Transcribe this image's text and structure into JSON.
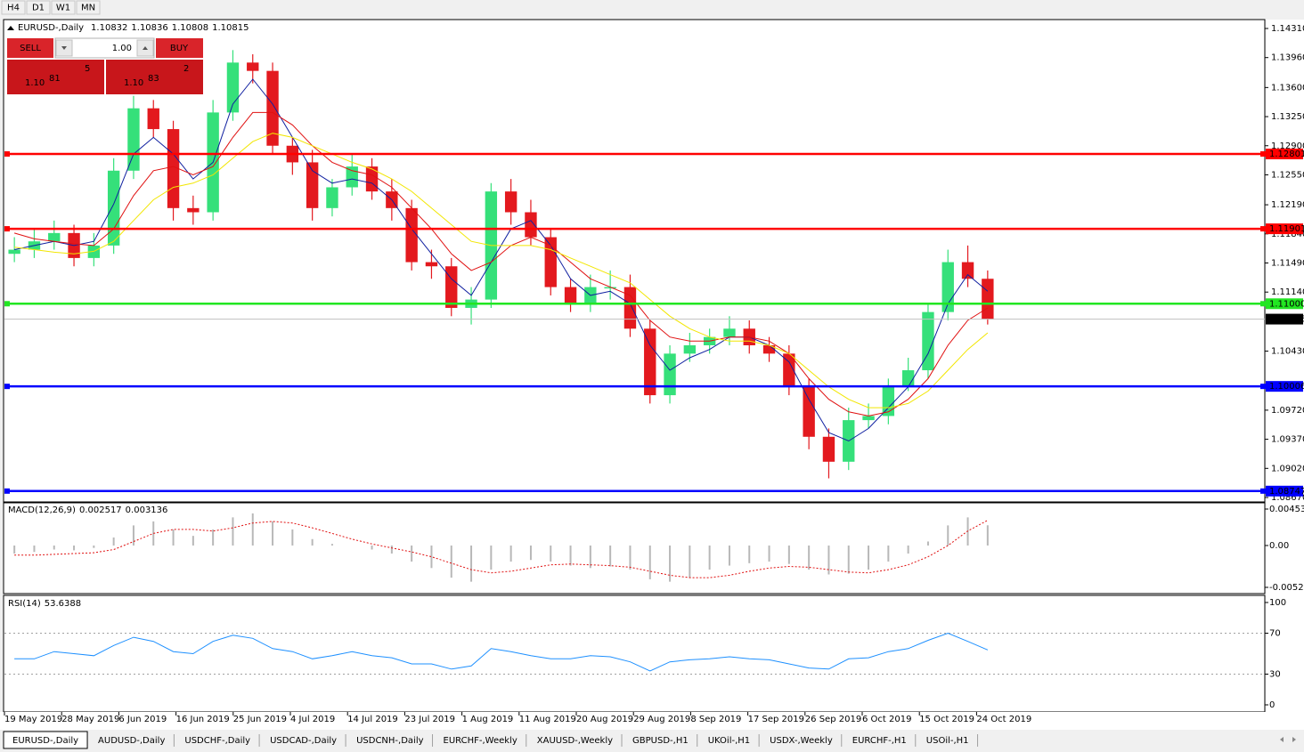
{
  "toolbar": {
    "timeframes": [
      "H4",
      "D1",
      "W1",
      "MN"
    ]
  },
  "header": {
    "symbol": "EURUSD-,Daily",
    "ohlc": [
      1.10832,
      1.10836,
      1.10808,
      1.10815
    ]
  },
  "trade_panel": {
    "sell": "SELL",
    "buy": "BUY",
    "lot": "1.00",
    "sell_price": {
      "prefix": "1.10",
      "big": "81",
      "small": "5"
    },
    "buy_price": {
      "prefix": "1.10",
      "big": "83",
      "small": "2"
    }
  },
  "chart_data": {
    "type": "candlestick",
    "x_labels": [
      "19 May 2019",
      "28 May 2019",
      "6 Jun 2019",
      "16 Jun 2019",
      "25 Jun 2019",
      "4 Jul 2019",
      "14 Jul 2019",
      "23 Jul 2019",
      "1 Aug 2019",
      "11 Aug 2019",
      "20 Aug 2019",
      "29 Aug 2019",
      "8 Sep 2019",
      "17 Sep 2019",
      "26 Sep 2019",
      "6 Oct 2019",
      "15 Oct 2019",
      "24 Oct 2019"
    ],
    "open": [
      1.116,
      1.1165,
      1.1175,
      1.1185,
      1.1155,
      1.117,
      1.126,
      1.1335,
      1.131,
      1.1215,
      1.121,
      1.133,
      1.139,
      1.138,
      1.129,
      1.127,
      1.1215,
      1.124,
      1.1265,
      1.1235,
      1.1215,
      1.115,
      1.1145,
      1.1095,
      1.1105,
      1.1235,
      1.121,
      1.118,
      1.112,
      1.11,
      1.112,
      1.112,
      1.107,
      1.099,
      1.104,
      1.105,
      1.106,
      1.107,
      1.105,
      1.104,
      1.1,
      1.094,
      1.091,
      1.096,
      1.0965,
      1.1,
      1.102,
      1.109,
      1.115,
      1.113
    ],
    "high": [
      1.118,
      1.119,
      1.12,
      1.1195,
      1.1185,
      1.1275,
      1.135,
      1.1345,
      1.132,
      1.123,
      1.1345,
      1.1405,
      1.14,
      1.139,
      1.13,
      1.1285,
      1.125,
      1.128,
      1.1275,
      1.125,
      1.1225,
      1.1165,
      1.1155,
      1.112,
      1.1245,
      1.125,
      1.1225,
      1.119,
      1.113,
      1.1135,
      1.114,
      1.1135,
      1.108,
      1.105,
      1.1065,
      1.107,
      1.1085,
      1.108,
      1.106,
      1.105,
      1.101,
      1.095,
      1.0975,
      1.098,
      1.101,
      1.1035,
      1.11,
      1.1165,
      1.117,
      1.114
    ],
    "low": [
      1.115,
      1.1155,
      1.1165,
      1.1145,
      1.1145,
      1.116,
      1.125,
      1.13,
      1.12,
      1.1195,
      1.12,
      1.132,
      1.1365,
      1.128,
      1.1255,
      1.12,
      1.1205,
      1.123,
      1.1225,
      1.12,
      1.114,
      1.113,
      1.1085,
      1.1075,
      1.1095,
      1.1195,
      1.117,
      1.111,
      1.109,
      1.109,
      1.1105,
      1.106,
      1.098,
      1.098,
      1.103,
      1.104,
      1.105,
      1.104,
      1.103,
      1.099,
      1.0925,
      1.089,
      1.09,
      1.095,
      1.0955,
      1.0995,
      1.101,
      1.108,
      1.112,
      1.1075
    ],
    "close": [
      1.1165,
      1.1175,
      1.1185,
      1.1155,
      1.117,
      1.126,
      1.1335,
      1.131,
      1.1215,
      1.121,
      1.133,
      1.139,
      1.138,
      1.129,
      1.127,
      1.1215,
      1.124,
      1.1265,
      1.1235,
      1.1215,
      1.115,
      1.1145,
      1.1095,
      1.1105,
      1.1235,
      1.121,
      1.118,
      1.112,
      1.11,
      1.112,
      1.112,
      1.107,
      1.099,
      1.104,
      1.105,
      1.106,
      1.107,
      1.105,
      1.104,
      1.1,
      1.094,
      1.091,
      1.096,
      1.0965,
      1.1,
      1.102,
      1.109,
      1.115,
      1.113,
      1.10815
    ],
    "up_color": "#35e07a",
    "down_color": "#e3191e",
    "ma": [
      {
        "color": "#1020a0",
        "values": [
          1.1165,
          1.117,
          1.1175,
          1.117,
          1.1175,
          1.122,
          1.128,
          1.13,
          1.128,
          1.125,
          1.127,
          1.134,
          1.137,
          1.134,
          1.13,
          1.126,
          1.1245,
          1.125,
          1.1245,
          1.1225,
          1.119,
          1.116,
          1.113,
          1.111,
          1.115,
          1.119,
          1.12,
          1.117,
          1.113,
          1.111,
          1.1115,
          1.11,
          1.105,
          1.102,
          1.1035,
          1.1045,
          1.106,
          1.106,
          1.105,
          1.103,
          1.0985,
          1.0945,
          1.0935,
          1.095,
          1.0975,
          1.1,
          1.104,
          1.11,
          1.1135,
          1.1115
        ]
      },
      {
        "color": "#e01010",
        "values": [
          1.1185,
          1.1178,
          1.1175,
          1.1172,
          1.117,
          1.119,
          1.123,
          1.126,
          1.1265,
          1.1255,
          1.1265,
          1.13,
          1.133,
          1.133,
          1.1315,
          1.129,
          1.127,
          1.126,
          1.1255,
          1.124,
          1.1215,
          1.119,
          1.116,
          1.114,
          1.115,
          1.117,
          1.118,
          1.117,
          1.115,
          1.113,
          1.112,
          1.111,
          1.108,
          1.106,
          1.1055,
          1.1055,
          1.106,
          1.106,
          1.1055,
          1.104,
          1.101,
          1.0985,
          1.097,
          1.0965,
          1.097,
          1.0985,
          1.101,
          1.105,
          1.108,
          1.1095
        ]
      },
      {
        "color": "#f2e600",
        "values": [
          1.1168,
          1.1165,
          1.1162,
          1.116,
          1.1163,
          1.1175,
          1.12,
          1.1225,
          1.124,
          1.1245,
          1.1255,
          1.1275,
          1.1295,
          1.1305,
          1.13,
          1.129,
          1.128,
          1.127,
          1.1262,
          1.125,
          1.1235,
          1.1215,
          1.1195,
          1.1175,
          1.117,
          1.117,
          1.117,
          1.1165,
          1.1155,
          1.1145,
          1.1135,
          1.1125,
          1.1105,
          1.1085,
          1.107,
          1.106,
          1.1055,
          1.1055,
          1.105,
          1.104,
          1.102,
          1.1,
          1.0985,
          1.0975,
          1.0975,
          1.098,
          1.0995,
          1.102,
          1.1045,
          1.1065
        ]
      }
    ],
    "ylim": [
      1.0867,
      1.1431
    ],
    "yticks": [
      {
        "value": 1.1431,
        "label": "1.14310"
      },
      {
        "value": 1.1396,
        "label": "1.13960"
      },
      {
        "value": 1.136,
        "label": "1.13600"
      },
      {
        "value": 1.1325,
        "label": "1.13250"
      },
      {
        "value": 1.129,
        "label": "1.12900"
      },
      {
        "value": 1.1255,
        "label": "1.12550"
      },
      {
        "value": 1.1219,
        "label": "1.12190"
      },
      {
        "value": 1.1184,
        "label": "1.11840"
      },
      {
        "value": 1.1149,
        "label": "1.11490"
      },
      {
        "value": 1.1114,
        "label": "1.11140"
      },
      {
        "value": 1.1043,
        "label": "1.10430"
      },
      {
        "value": 1.0972,
        "label": "1.09720"
      },
      {
        "value": 1.0937,
        "label": "1.09370"
      },
      {
        "value": 1.0902,
        "label": "1.09020"
      },
      {
        "value": 1.0867,
        "label": "1.08670"
      }
    ],
    "levels": [
      {
        "value": 1.12801,
        "color": "#ff0000"
      },
      {
        "value": 1.11901,
        "color": "#ff0000"
      },
      {
        "value": 1.11,
        "label": "1.11000",
        "color": "#22e622"
      },
      {
        "value": 1.10006,
        "color": "#0000ff"
      },
      {
        "value": 1.08747,
        "color": "#0000ff"
      }
    ],
    "last": 1.10815,
    "macd": {
      "name": "MACD(12,26,9)",
      "main_value": 0.002517,
      "signal_value": 0.003136,
      "ylim": [
        -0.005205,
        0.004536
      ],
      "yticks": [
        0.004536,
        {
          "value": 0,
          "label": "0.00"
        },
        -0.005205
      ],
      "hist_color": "#b8b8b8",
      "signal_color": "#e01010",
      "main": [
        -0.001,
        -0.0008,
        -0.0005,
        -0.0006,
        -0.0003,
        0.001,
        0.0025,
        0.003,
        0.002,
        0.0012,
        0.002,
        0.0035,
        0.004,
        0.003,
        0.002,
        0.0008,
        0.0002,
        0.0,
        -0.0005,
        -0.001,
        -0.002,
        -0.0028,
        -0.004,
        -0.0045,
        -0.003,
        -0.002,
        -0.0018,
        -0.002,
        -0.0025,
        -0.0028,
        -0.0026,
        -0.003,
        -0.0042,
        -0.0045,
        -0.004,
        -0.003,
        -0.0025,
        -0.0022,
        -0.002,
        -0.0023,
        -0.003,
        -0.0036,
        -0.0035,
        -0.003,
        -0.002,
        -0.001,
        0.0005,
        0.0025,
        0.0035,
        0.002517
      ],
      "signal": [
        -0.0012,
        -0.0012,
        -0.0011,
        -0.001,
        -0.0009,
        -0.0005,
        0.0005,
        0.0015,
        0.002,
        0.002,
        0.0018,
        0.0022,
        0.0028,
        0.003,
        0.0028,
        0.0022,
        0.0015,
        0.0008,
        0.0002,
        -0.0003,
        -0.0008,
        -0.0014,
        -0.0022,
        -0.003,
        -0.0034,
        -0.0032,
        -0.0028,
        -0.0024,
        -0.0023,
        -0.0024,
        -0.0025,
        -0.0027,
        -0.0032,
        -0.0037,
        -0.004,
        -0.004,
        -0.0037,
        -0.0032,
        -0.0028,
        -0.0026,
        -0.0027,
        -0.003,
        -0.0033,
        -0.0034,
        -0.003,
        -0.0024,
        -0.0014,
        0.0,
        0.0018,
        0.003136
      ]
    },
    "rsi": {
      "name": "RSI(14)",
      "value": 53.6388,
      "color": "#1e90ff",
      "ylim": [
        0,
        100
      ],
      "yticks": [
        100,
        70,
        30,
        0
      ],
      "levels": [
        70,
        30
      ],
      "values": [
        45,
        45,
        52,
        50,
        48,
        58,
        66,
        62,
        52,
        50,
        62,
        68,
        65,
        55,
        52,
        45,
        48,
        52,
        48,
        46,
        40,
        40,
        35,
        38,
        55,
        52,
        48,
        45,
        45,
        48,
        47,
        42,
        33,
        42,
        44,
        45,
        47,
        45,
        44,
        40,
        36,
        35,
        45,
        46,
        52,
        55,
        63,
        70,
        62,
        53.6388
      ]
    }
  },
  "tabs": [
    "EURUSD-,Daily",
    "AUDUSD-,Daily",
    "USDCHF-,Daily",
    "USDCAD-,Daily",
    "USDCNH-,Daily",
    "EURCHF-,Weekly",
    "XAUUSD-,Weekly",
    "GBPUSD-,H1",
    "UKOil-,H1",
    "USDX-,Weekly",
    "EURCHF-,H1",
    "USOil-,H1"
  ]
}
